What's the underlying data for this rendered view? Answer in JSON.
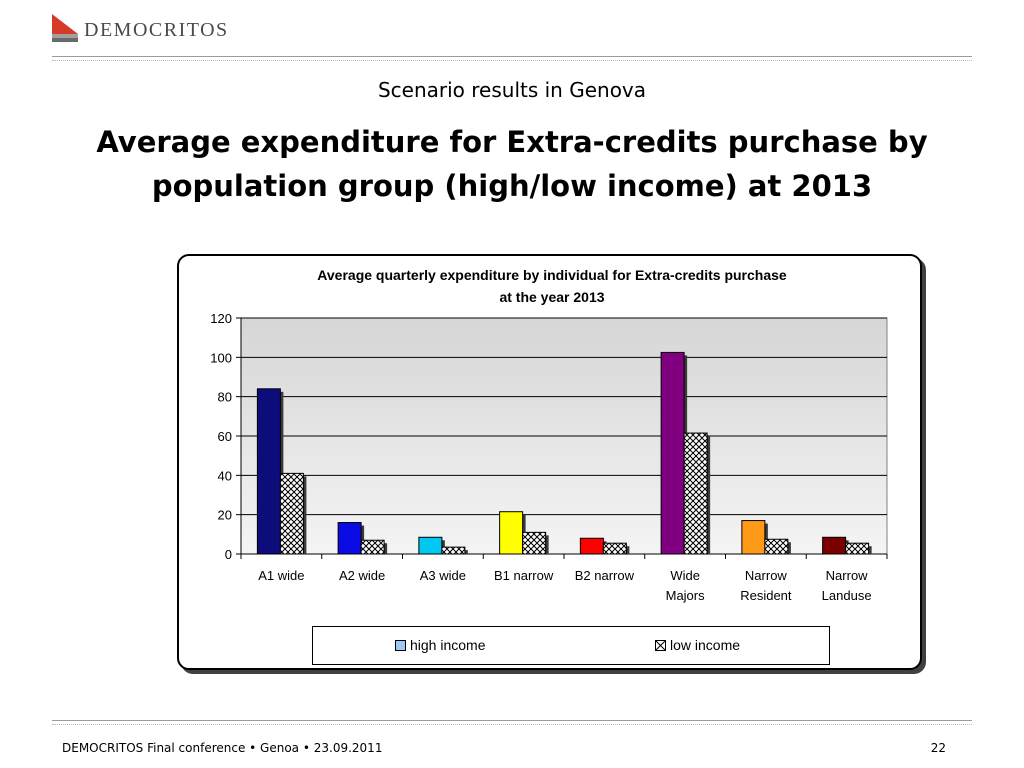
{
  "header": {
    "logo_text": "DEMOCRITOS",
    "subtitle": "Scenario results in Genova",
    "title": "Average expenditure for Extra-credits purchase by population group (high/low income) at 2013"
  },
  "chart_data": {
    "type": "bar",
    "title_line1": "Average quarterly expenditure by individual for Extra-credits purchase",
    "title_line2": "at the year 2013",
    "categories": [
      [
        "A1 wide"
      ],
      [
        "A2 wide"
      ],
      [
        "A3 wide"
      ],
      [
        "B1 narrow"
      ],
      [
        "B2 narrow"
      ],
      [
        "Wide",
        "Majors"
      ],
      [
        "Narrow",
        "Resident"
      ],
      [
        "Narrow",
        "Landuse"
      ]
    ],
    "series": [
      {
        "name": "high income",
        "values": [
          84,
          16,
          8.5,
          21.5,
          8,
          102.5,
          17,
          8.5
        ]
      },
      {
        "name": "low income",
        "values": [
          41,
          7,
          3.5,
          11,
          5.5,
          61.5,
          7.5,
          5.5
        ]
      }
    ],
    "bar_colors": [
      "#0c0c7a",
      "#0b0be6",
      "#00c8f0",
      "#ffff00",
      "#ff0000",
      "#800080",
      "#ff9a18",
      "#7a0000"
    ],
    "ylim": [
      0,
      120
    ],
    "yticks": [
      0,
      20,
      40,
      60,
      80,
      100,
      120
    ],
    "grid": true,
    "legend_position": "bottom"
  },
  "footer": {
    "text": "DEMOCRITOS Final conference • Genoa • 23.09.2011",
    "page": "22"
  }
}
